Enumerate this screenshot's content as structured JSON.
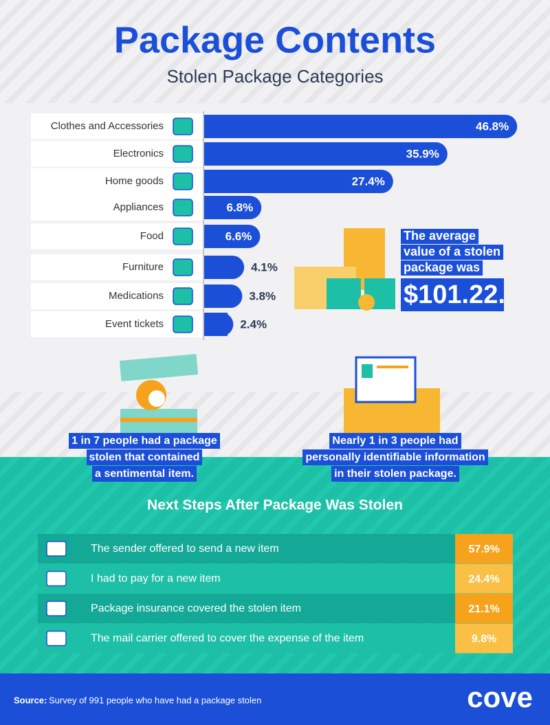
{
  "chart_data": {
    "type": "bar",
    "title": "Package Contents",
    "subtitle": "Stolen Package Categories",
    "categories": [
      "Clothes and Accessories",
      "Electronics",
      "Home goods",
      "Appliances",
      "Food",
      "Furniture",
      "Medications",
      "Event tickets"
    ],
    "values": [
      46.8,
      35.9,
      27.4,
      6.8,
      6.6,
      4.1,
      3.8,
      2.4
    ],
    "value_labels": [
      "46.8%",
      "35.9%",
      "27.4%",
      "6.8%",
      "6.6%",
      "4.1%",
      "3.8%",
      "2.4%"
    ],
    "color": "#1b4fd8"
  },
  "callout": {
    "lines": [
      "The average",
      "value of a stolen",
      "package was"
    ],
    "amount": "$101.22."
  },
  "facts": [
    {
      "lines": [
        "1 in 7 people had a package",
        "stolen that contained",
        "a sentimental item."
      ]
    },
    {
      "lines": [
        "Nearly 1 in 3 people had",
        "personally identifiable information",
        "in their stolen package."
      ]
    }
  ],
  "next_steps": {
    "title": "Next Steps After Package Was Stolen",
    "rows": [
      [
        "The sender offered to send a new item",
        "57.9%"
      ],
      [
        "I had to pay for a new item",
        "24.4%"
      ],
      [
        "Package insurance covered the stolen item",
        "21.1%"
      ],
      [
        "The mail carrier offered to cover the expense of the item",
        "9.8%"
      ]
    ]
  },
  "footer": {
    "source_label": "Source:",
    "source": "Survey of 991 people who have had a package stolen",
    "logo": "cove"
  }
}
